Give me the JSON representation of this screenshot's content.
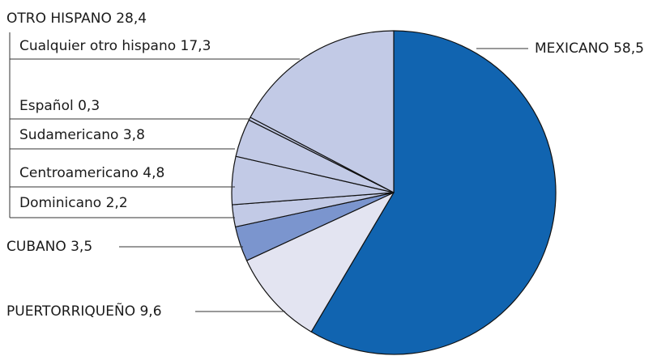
{
  "chart_data": {
    "type": "pie",
    "slices": [
      {
        "label": "MEXICANO",
        "value": 58.5,
        "display": "58,5",
        "color": "#1164B0"
      },
      {
        "label": "PUERTORRIQUEÑO",
        "value": 9.6,
        "display": "9,6",
        "color": "#E3E4F1"
      },
      {
        "label": "CUBANO",
        "value": 3.5,
        "display": "3,5",
        "color": "#7B95CE"
      },
      {
        "label": "Dominicano",
        "value": 2.2,
        "display": "2,2",
        "color": "#C2CAE6"
      },
      {
        "label": "Centroamericano",
        "value": 4.8,
        "display": "4,8",
        "color": "#C2CAE6"
      },
      {
        "label": "Sudamericano",
        "value": 3.8,
        "display": "3,8",
        "color": "#C2CAE6"
      },
      {
        "label": "Español",
        "value": 0.3,
        "display": "0,3",
        "color": "#C2CAE6"
      },
      {
        "label": "Cualquier otro hispano",
        "value": 17.3,
        "display": "17,3",
        "color": "#C2CAE6"
      }
    ],
    "group": {
      "label": "OTRO HISPANO",
      "display": "28,4"
    }
  }
}
